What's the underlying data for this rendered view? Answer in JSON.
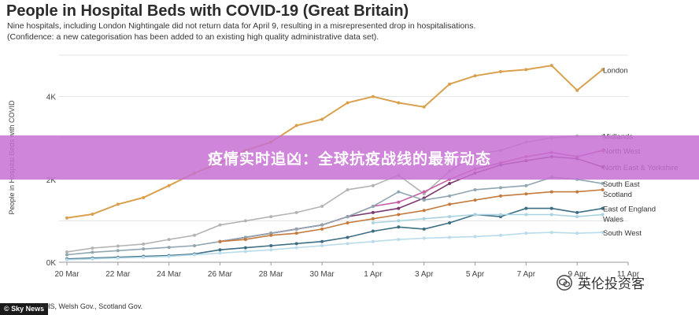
{
  "header": {
    "title": "People in Hospital Beds with COVID-19 (Great Britain)",
    "subtitle_1": "Nine hospitals, including London Nightingale did not return data for April 9, resulting in a misrepresented drop in hospitalisations.",
    "subtitle_2": "(Confidence: a new categorisation has been added to an existing high quality administrative data set)."
  },
  "banner": {
    "text": "疫情实时追凶：全球抗疫战线的最新动态"
  },
  "footer": {
    "source": "...: NHS, Welsh Gov., Scotland Gov.",
    "logo": "© Sky News"
  },
  "watermark": {
    "text": "英伦投资客",
    "icon": "wechat-icon"
  },
  "colors": {
    "banner": "#c770d2",
    "grid": "#e3e3e3"
  },
  "chart_data": {
    "type": "line",
    "ylabel": "People in Hospital Beds with COVID",
    "ylim": [
      0,
      5000
    ],
    "yticks": [
      {
        "value": 0,
        "label": "0K"
      },
      {
        "value": 2000,
        "label": "2K"
      },
      {
        "value": 4000,
        "label": "4K"
      }
    ],
    "xticks": [
      "20 Mar",
      "22 Mar",
      "24 Mar",
      "26 Mar",
      "28 Mar",
      "30 Mar",
      "1 Apr",
      "3 Apr",
      "5 Apr",
      "7 Apr",
      "9 Apr",
      "11 Apr"
    ],
    "x": [
      "20 Mar",
      "21 Mar",
      "22 Mar",
      "23 Mar",
      "24 Mar",
      "25 Mar",
      "26 Mar",
      "27 Mar",
      "28 Mar",
      "29 Mar",
      "30 Mar",
      "31 Mar",
      "1 Apr",
      "2 Apr",
      "3 Apr",
      "4 Apr",
      "5 Apr",
      "6 Apr",
      "7 Apr",
      "8 Apr",
      "9 Apr",
      "10 Apr",
      "11 Apr"
    ],
    "grid": true,
    "series": [
      {
        "name": "London",
        "color": "#d9a04e",
        "values": [
          1070,
          1160,
          1400,
          1560,
          1850,
          2150,
          2400,
          2700,
          2900,
          3300,
          3450,
          3850,
          4000,
          3850,
          3750,
          4300,
          4500,
          4600,
          4650,
          4750,
          4150,
          4650,
          null
        ]
      },
      {
        "name": "Midlands",
        "color": "#b4b4b4",
        "values": [
          250,
          340,
          390,
          440,
          550,
          650,
          900,
          1000,
          1100,
          1200,
          1350,
          1750,
          1850,
          2100,
          1650,
          2200,
          2600,
          2700,
          2900,
          3000,
          3050,
          3050,
          null
        ]
      },
      {
        "name": "North West",
        "color": "#c65fa8",
        "values": [
          null,
          null,
          null,
          null,
          null,
          null,
          500,
          600,
          700,
          800,
          900,
          1100,
          1350,
          1450,
          1700,
          2000,
          2250,
          2400,
          2550,
          2650,
          2550,
          2700,
          null
        ]
      },
      {
        "name": "North East & Yorkshire",
        "color": "#7a3a70",
        "values": [
          null,
          null,
          null,
          null,
          null,
          null,
          500,
          600,
          700,
          800,
          900,
          1100,
          1200,
          1300,
          1550,
          1900,
          2150,
          2350,
          2450,
          2550,
          2500,
          2300,
          null
        ]
      },
      {
        "name": "South East",
        "color": "#90a6b0",
        "values": [
          180,
          240,
          280,
          320,
          360,
          400,
          500,
          600,
          700,
          800,
          900,
          1100,
          1350,
          1700,
          1500,
          1600,
          1750,
          1800,
          1850,
          2050,
          2000,
          1900,
          null
        ]
      },
      {
        "name": "Scotland",
        "color": "#c37a3f",
        "values": [
          null,
          null,
          null,
          null,
          null,
          null,
          500,
          550,
          650,
          700,
          800,
          950,
          1050,
          1150,
          1250,
          1400,
          1500,
          1600,
          1650,
          1700,
          1700,
          1750,
          null
        ]
      },
      {
        "name": "East of England",
        "color": "#3c6e84",
        "values": [
          80,
          100,
          120,
          140,
          160,
          200,
          300,
          350,
          400,
          450,
          500,
          600,
          750,
          850,
          800,
          950,
          1150,
          1100,
          1300,
          1300,
          1200,
          1300,
          null
        ]
      },
      {
        "name": "Wales",
        "color": "#a9d3df",
        "values": [
          null,
          null,
          null,
          null,
          null,
          null,
          null,
          null,
          null,
          null,
          null,
          null,
          950,
          1000,
          1050,
          1100,
          1150,
          1150,
          1150,
          1150,
          1100,
          1150,
          null
        ]
      },
      {
        "name": "South West",
        "color": "#b9dcea",
        "values": [
          60,
          80,
          100,
          120,
          140,
          180,
          220,
          260,
          300,
          350,
          400,
          450,
          500,
          550,
          580,
          600,
          620,
          650,
          700,
          720,
          700,
          720,
          null
        ]
      }
    ]
  }
}
